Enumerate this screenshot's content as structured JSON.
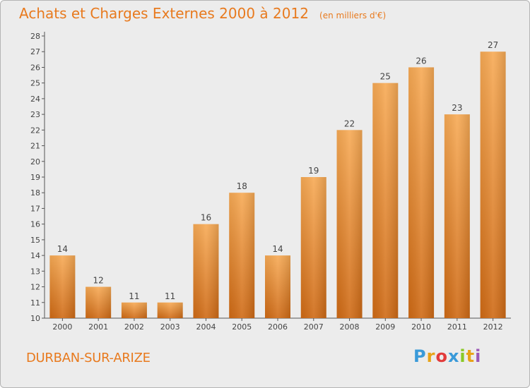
{
  "title": {
    "main": "Achats et Charges Externes 2000 à 2012",
    "unit": "(en milliers d'€)"
  },
  "place": "DURBAN-SUR-ARIZE",
  "brand": {
    "letters": [
      "P",
      "r",
      "o",
      "x",
      "i",
      "t",
      "i"
    ],
    "colors": [
      "#3a9ad9",
      "#e8a317",
      "#e23b3b",
      "#3a9ad9",
      "#8ac926",
      "#e8a317",
      "#9b59b6"
    ]
  },
  "colors": {
    "bar": "#f09a3e",
    "text_accent": "#e87a1e",
    "background": "#ececec"
  },
  "chart_data": {
    "type": "bar",
    "categories": [
      "2000",
      "2001",
      "2002",
      "2003",
      "2004",
      "2005",
      "2006",
      "2007",
      "2008",
      "2009",
      "2010",
      "2011",
      "2012"
    ],
    "values": [
      14,
      12,
      11,
      11,
      16,
      18,
      14,
      19,
      22,
      25,
      26,
      23,
      27
    ],
    "ylim": [
      10,
      28
    ],
    "yticks": [
      10,
      11,
      12,
      13,
      14,
      15,
      16,
      17,
      18,
      19,
      20,
      21,
      22,
      23,
      24,
      25,
      26,
      27,
      28
    ],
    "grid": false,
    "data_labels": true
  }
}
